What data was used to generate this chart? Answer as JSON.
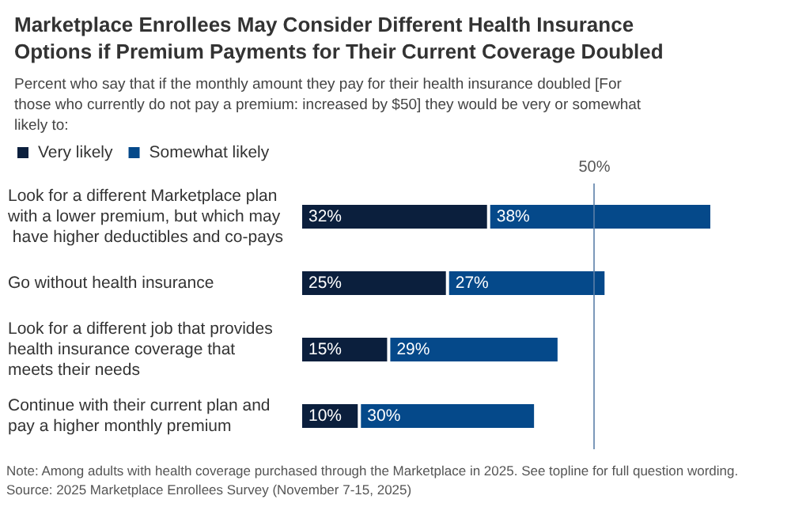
{
  "chart_data": {
    "type": "bar",
    "orientation": "horizontal",
    "stacked": true,
    "title": "Marketplace Enrollees May Consider Different Health Insurance Options if Premium Payments for Their Current Coverage Doubled",
    "subtitle": "Percent who say that if the monthly amount they pay for their health insurance doubled [For those who currently do not pay a premium: increased by $50] they would be very or somewhat likely to:",
    "categories": [
      "Look for a different Marketplace plan with a lower premium, but which may have higher deductibles and co-pays",
      "Go without health insurance",
      "Look for a different job that provides health insurance coverage that meets their needs",
      "Continue with their current plan and pay a higher monthly premium"
    ],
    "series": [
      {
        "name": "Very likely",
        "color": "#0b1f3d",
        "values": [
          32,
          25,
          15,
          10
        ],
        "value_labels": [
          "32%",
          "25%",
          "15%",
          "10%"
        ]
      },
      {
        "name": "Somewhat likely",
        "color": "#05498a",
        "values": [
          38,
          27,
          29,
          30
        ],
        "value_labels": [
          "38%",
          "27%",
          "29%",
          "30%"
        ]
      }
    ],
    "ref_lines": [
      {
        "axis": "x",
        "value": 50,
        "label": "50%",
        "color": "#5b7fa8"
      }
    ],
    "legend": "top left",
    "annotations": [
      "Note: Among adults with health coverage purchased through the Marketplace in 2025. See topline for full question wording.",
      "Source: 2025 Marketplace Enrollees Survey (November 7-15, 2025)"
    ]
  }
}
